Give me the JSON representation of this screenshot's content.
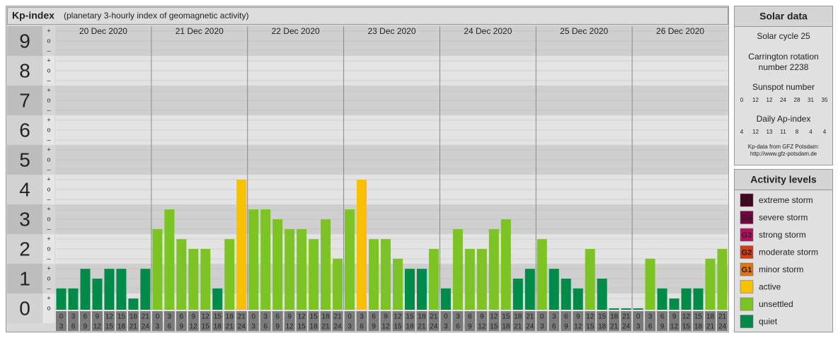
{
  "chart_data": {
    "type": "bar",
    "title": "Kp-index",
    "subtitle": "(planetary 3-hourly index of geomagnetic activity)",
    "ylim": [
      0,
      9.5
    ],
    "yticks": [
      0,
      1,
      2,
      3,
      4,
      5,
      6,
      7,
      8,
      9
    ],
    "minor_tick_labels": [
      "o",
      "–",
      "+"
    ],
    "slot_labels": [
      [
        "0",
        "3"
      ],
      [
        "3",
        "6"
      ],
      [
        "6",
        "9"
      ],
      [
        "9",
        "12"
      ],
      [
        "12",
        "15"
      ],
      [
        "15",
        "18"
      ],
      [
        "18",
        "21"
      ],
      [
        "21",
        "24"
      ]
    ],
    "days": [
      {
        "date": "20 Dec 2020",
        "values": [
          0.67,
          0.67,
          1.33,
          1.0,
          1.33,
          1.33,
          0.33,
          1.33
        ],
        "colors": [
          "#008a48",
          "#008a48",
          "#008a48",
          "#008a48",
          "#008a48",
          "#008a48",
          "#008a48",
          "#008a48"
        ]
      },
      {
        "date": "21 Dec 2020",
        "values": [
          2.67,
          3.33,
          2.33,
          2.0,
          2.0,
          0.67,
          2.33,
          4.33
        ],
        "colors": [
          "#7cc324",
          "#7cc324",
          "#7cc324",
          "#7cc324",
          "#7cc324",
          "#008a48",
          "#7cc324",
          "#f8c000"
        ]
      },
      {
        "date": "22 Dec 2020",
        "values": [
          3.33,
          3.33,
          3.0,
          2.67,
          2.67,
          2.33,
          3.0,
          1.67
        ],
        "colors": [
          "#7cc324",
          "#7cc324",
          "#7cc324",
          "#7cc324",
          "#7cc324",
          "#7cc324",
          "#7cc324",
          "#7cc324"
        ]
      },
      {
        "date": "23 Dec 2020",
        "values": [
          3.33,
          4.33,
          2.33,
          2.33,
          1.67,
          1.33,
          1.33,
          2.0
        ],
        "colors": [
          "#7cc324",
          "#f8c000",
          "#7cc324",
          "#7cc324",
          "#7cc324",
          "#008a48",
          "#008a48",
          "#7cc324"
        ]
      },
      {
        "date": "24 Dec 2020",
        "values": [
          0.67,
          2.67,
          2.0,
          2.0,
          2.67,
          3.0,
          1.0,
          1.33
        ],
        "colors": [
          "#008a48",
          "#7cc324",
          "#7cc324",
          "#7cc324",
          "#7cc324",
          "#7cc324",
          "#008a48",
          "#008a48"
        ]
      },
      {
        "date": "25 Dec 2020",
        "values": [
          2.33,
          1.33,
          1.0,
          0.67,
          2.0,
          1.0,
          0,
          0
        ],
        "colors": [
          "#7cc324",
          "#008a48",
          "#008a48",
          "#008a48",
          "#7cc324",
          "#008a48",
          "#008a48",
          "#008a48"
        ]
      },
      {
        "date": "26 Dec 2020",
        "values": [
          0,
          1.67,
          0.67,
          0.33,
          0.67,
          0.67,
          1.67,
          2.0
        ],
        "colors": [
          "#008a48",
          "#7cc324",
          "#008a48",
          "#008a48",
          "#008a48",
          "#008a48",
          "#7cc324",
          "#7cc324"
        ]
      }
    ]
  },
  "solar": {
    "title": "Solar data",
    "cycle": "Solar cycle 25",
    "carrington": [
      "Carrington rotation",
      "number 2238"
    ],
    "sunspot_title": "Sunspot number",
    "sunspot": [
      0,
      12,
      12,
      24,
      28,
      31,
      35
    ],
    "ap_title": "Daily Ap-index",
    "ap": [
      4,
      12,
      13,
      11,
      8,
      4,
      4
    ],
    "source": [
      "Kp-data from GFZ Potsdam:",
      "http://www.gfz-potsdam.de"
    ]
  },
  "activity": {
    "title": "Activity levels",
    "levels": [
      {
        "badge": "G5",
        "label": "extreme storm",
        "color": "#4a0022"
      },
      {
        "badge": "G4",
        "label": "severe storm",
        "color": "#780040"
      },
      {
        "badge": "G3",
        "label": "strong storm",
        "color": "#b3105c"
      },
      {
        "badge": "G2",
        "label": "moderate storm",
        "color": "#d23c14"
      },
      {
        "badge": "G1",
        "label": "minor storm",
        "color": "#e27212"
      },
      {
        "label": "active",
        "color": "#f8c000"
      },
      {
        "label": "unsettled",
        "color": "#7cc324"
      },
      {
        "label": "quiet",
        "color": "#008a48"
      }
    ]
  }
}
